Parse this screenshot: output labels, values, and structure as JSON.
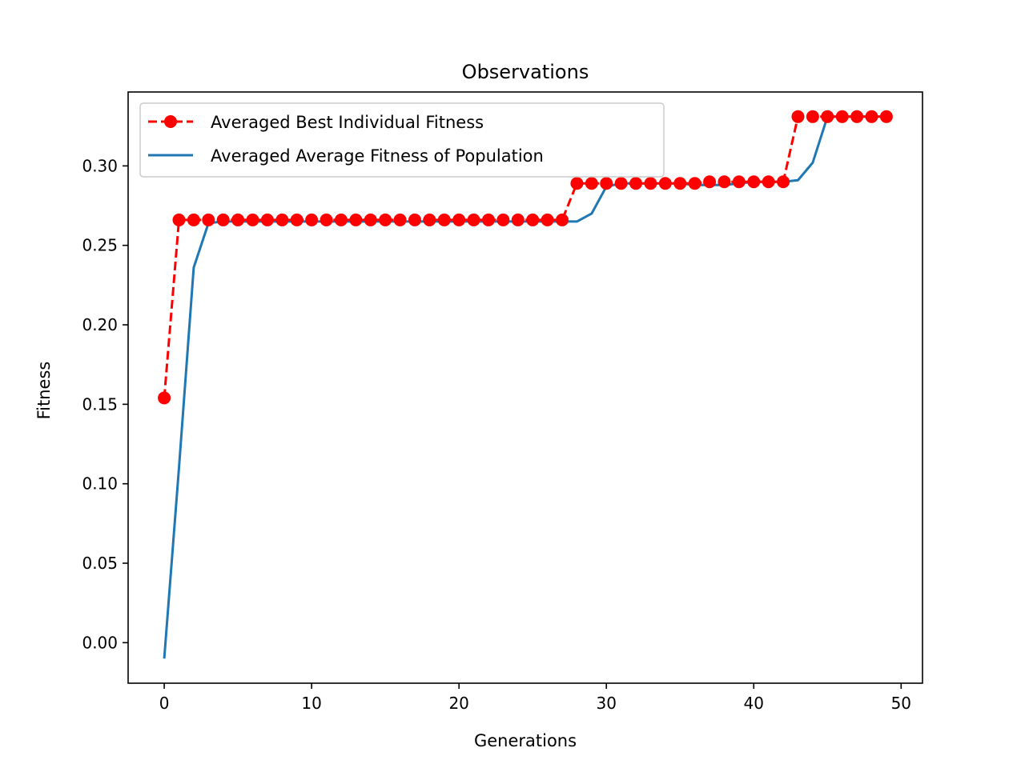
{
  "chart_data": {
    "type": "line",
    "title": "Observations",
    "xlabel": "Generations",
    "ylabel": "Fitness",
    "xlim": [
      -2.45,
      51.45
    ],
    "ylim": [
      -0.0255,
      0.3465
    ],
    "xticks": [
      0,
      10,
      20,
      30,
      40,
      50
    ],
    "xtick_labels": [
      "0",
      "10",
      "20",
      "30",
      "40",
      "50"
    ],
    "yticks": [
      0.0,
      0.05,
      0.1,
      0.15,
      0.2,
      0.25,
      0.3
    ],
    "ytick_labels": [
      "0.00",
      "0.05",
      "0.10",
      "0.15",
      "0.20",
      "0.25",
      "0.30"
    ],
    "grid": false,
    "legend_position": "top-left",
    "x": [
      0,
      1,
      2,
      3,
      4,
      5,
      6,
      7,
      8,
      9,
      10,
      11,
      12,
      13,
      14,
      15,
      16,
      17,
      18,
      19,
      20,
      21,
      22,
      23,
      24,
      25,
      26,
      27,
      28,
      29,
      30,
      31,
      32,
      33,
      34,
      35,
      36,
      37,
      38,
      39,
      40,
      41,
      42,
      43,
      44,
      45,
      46,
      47,
      48,
      49
    ],
    "series": [
      {
        "name": "Averaged Best Individual Fitness",
        "color": "#ff0000",
        "style": "dashed-with-circle-markers",
        "values": [
          0.154,
          0.266,
          0.266,
          0.266,
          0.266,
          0.266,
          0.266,
          0.266,
          0.266,
          0.266,
          0.266,
          0.266,
          0.266,
          0.266,
          0.266,
          0.266,
          0.266,
          0.266,
          0.266,
          0.266,
          0.266,
          0.266,
          0.266,
          0.266,
          0.266,
          0.266,
          0.266,
          0.266,
          0.289,
          0.289,
          0.289,
          0.289,
          0.289,
          0.289,
          0.289,
          0.289,
          0.289,
          0.29,
          0.29,
          0.29,
          0.29,
          0.29,
          0.29,
          0.331,
          0.331,
          0.331,
          0.331,
          0.331,
          0.331,
          0.331
        ]
      },
      {
        "name": "Averaged Average Fitness of Population",
        "color": "#1f77b4",
        "style": "solid",
        "values": [
          -0.01,
          0.11,
          0.236,
          0.264,
          0.265,
          0.265,
          0.265,
          0.265,
          0.265,
          0.265,
          0.265,
          0.265,
          0.265,
          0.265,
          0.265,
          0.265,
          0.265,
          0.265,
          0.265,
          0.265,
          0.265,
          0.265,
          0.265,
          0.265,
          0.265,
          0.265,
          0.265,
          0.265,
          0.265,
          0.27,
          0.287,
          0.289,
          0.289,
          0.289,
          0.289,
          0.289,
          0.288,
          0.288,
          0.288,
          0.289,
          0.29,
          0.29,
          0.29,
          0.291,
          0.302,
          0.331,
          0.331,
          0.331,
          0.331,
          0.331
        ]
      }
    ]
  }
}
